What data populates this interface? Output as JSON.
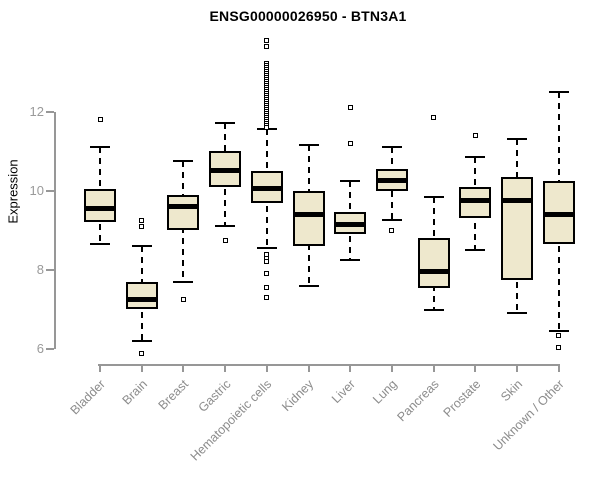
{
  "chart_data": {
    "type": "boxplot",
    "title": "ENSG00000026950 - BTN3A1",
    "ylabel": "Expression",
    "xlabel": "",
    "yticks": [
      6,
      8,
      10,
      12
    ],
    "ylim": [
      5.7,
      14.0
    ],
    "grid": false,
    "legend": "none",
    "colors": {
      "box_fill": "#EEE8CD",
      "box_border": "#000000",
      "median": "#000000",
      "whisker": "#000000",
      "axis": "#979797",
      "tick_label": "#9a9a9a",
      "category_label": "#8c8c8c",
      "title": "#000000",
      "background": "#ffffff"
    },
    "categories": [
      "Bladder",
      "Brain",
      "Breast",
      "Gastric",
      "Hematopoietic cells",
      "Kidney",
      "Liver",
      "Lung",
      "Pancreas",
      "Prostate",
      "Skin",
      "Unknown / Other"
    ],
    "series": [
      {
        "category": "Bladder",
        "whisker_low": 8.65,
        "q1": 9.2,
        "median": 9.55,
        "q3": 10.05,
        "whisker_high": 11.1,
        "outliers": [
          11.8
        ]
      },
      {
        "category": "Brain",
        "whisker_low": 6.2,
        "q1": 7.0,
        "median": 7.25,
        "q3": 7.7,
        "whisker_high": 8.6,
        "outliers": [
          9.25,
          9.1,
          5.9
        ]
      },
      {
        "category": "Breast",
        "whisker_low": 7.7,
        "q1": 9.0,
        "median": 9.6,
        "q3": 9.9,
        "whisker_high": 10.75,
        "outliers": [
          7.25
        ]
      },
      {
        "category": "Gastric",
        "whisker_low": 9.1,
        "q1": 10.1,
        "median": 10.5,
        "q3": 11.0,
        "whisker_high": 11.7,
        "outliers": [
          8.75
        ]
      },
      {
        "category": "Hematopoietic cells",
        "whisker_low": 8.55,
        "q1": 9.7,
        "median": 10.05,
        "q3": 10.5,
        "whisker_high": 11.55,
        "outliers": [
          13.8,
          13.65,
          13.2,
          13.15,
          13.1,
          13.05,
          13.0,
          12.95,
          12.9,
          12.85,
          12.8,
          12.75,
          12.7,
          12.65,
          12.6,
          12.55,
          12.5,
          12.45,
          12.4,
          12.35,
          12.3,
          12.25,
          12.2,
          12.15,
          12.1,
          12.05,
          12.0,
          11.95,
          11.9,
          11.85,
          11.8,
          11.75,
          11.7,
          11.65,
          11.6,
          8.4,
          8.3,
          8.2,
          7.9,
          7.55,
          7.3
        ]
      },
      {
        "category": "Kidney",
        "whisker_low": 7.6,
        "q1": 8.6,
        "median": 9.4,
        "q3": 10.0,
        "whisker_high": 11.15,
        "outliers": []
      },
      {
        "category": "Liver",
        "whisker_low": 8.25,
        "q1": 8.9,
        "median": 9.15,
        "q3": 9.45,
        "whisker_high": 10.25,
        "outliers": [
          12.1,
          11.2
        ]
      },
      {
        "category": "Lung",
        "whisker_low": 9.25,
        "q1": 10.0,
        "median": 10.25,
        "q3": 10.55,
        "whisker_high": 11.1,
        "outliers": [
          9.0
        ]
      },
      {
        "category": "Pancreas",
        "whisker_low": 7.0,
        "q1": 7.55,
        "median": 7.95,
        "q3": 8.8,
        "whisker_high": 9.85,
        "outliers": [
          11.85
        ]
      },
      {
        "category": "Prostate",
        "whisker_low": 8.5,
        "q1": 9.3,
        "median": 9.75,
        "q3": 10.1,
        "whisker_high": 10.85,
        "outliers": [
          11.4
        ]
      },
      {
        "category": "Skin",
        "whisker_low": 6.9,
        "q1": 7.75,
        "median": 9.75,
        "q3": 10.35,
        "whisker_high": 11.3,
        "outliers": []
      },
      {
        "category": "Unknown / Other",
        "whisker_low": 6.45,
        "q1": 8.65,
        "median": 9.4,
        "q3": 10.25,
        "whisker_high": 12.5,
        "outliers": [
          6.35,
          6.05
        ]
      }
    ]
  }
}
